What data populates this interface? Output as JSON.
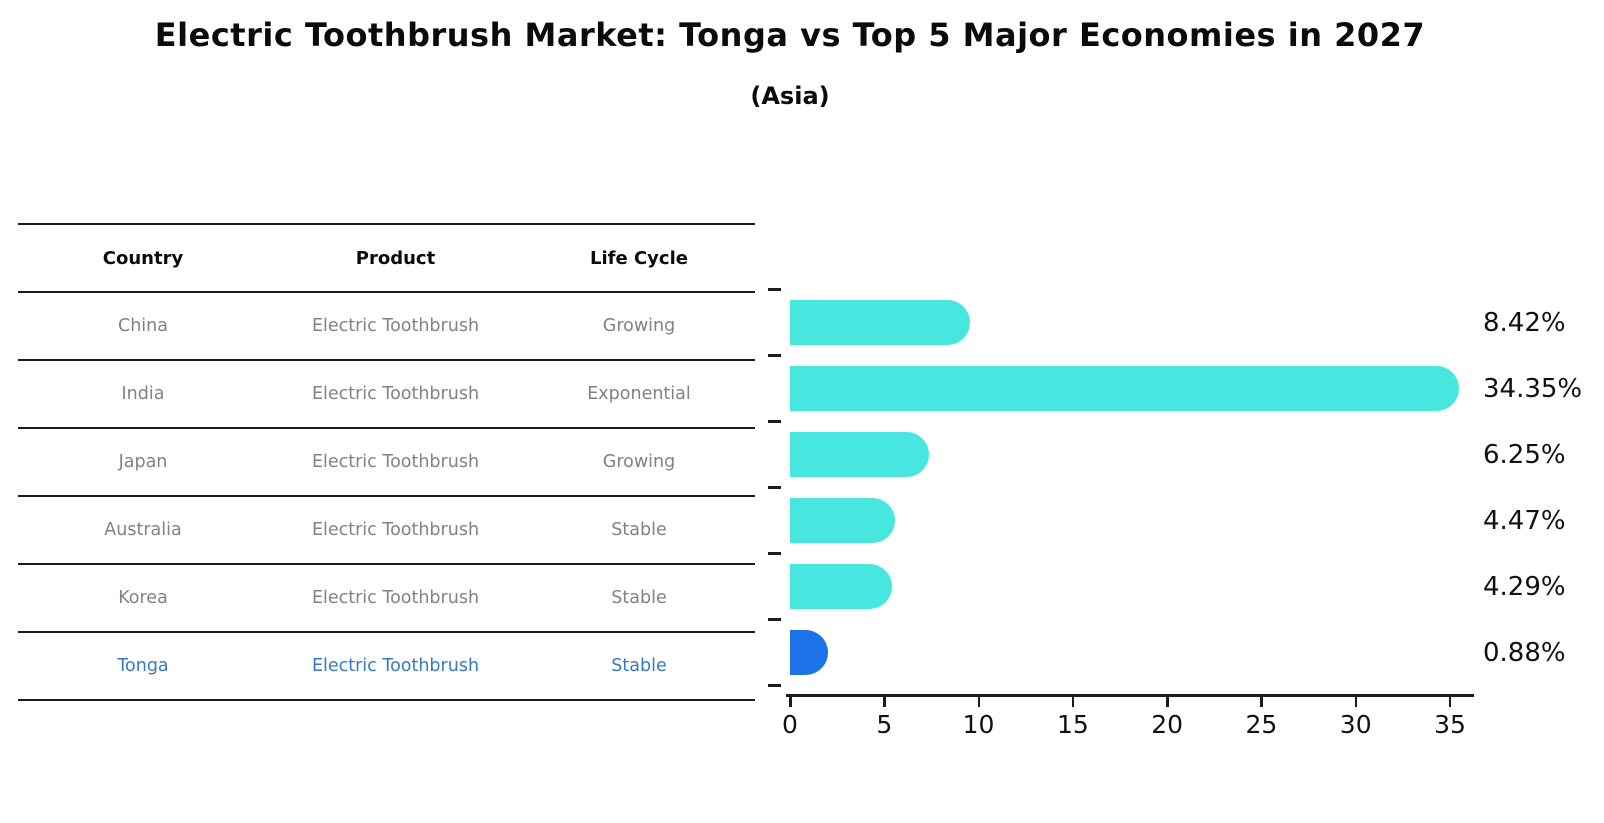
{
  "header": {
    "title": "Electric Toothbrush Market: Tonga vs Top 5 Major Economies in 2027",
    "subtitle": "(Asia)"
  },
  "table": {
    "columns": [
      "Country",
      "Product",
      "Life Cycle"
    ],
    "rows": [
      {
        "country": "China",
        "product": "Electric Toothbrush",
        "life_cycle": "Growing",
        "highlight": false
      },
      {
        "country": "India",
        "product": "Electric Toothbrush",
        "life_cycle": "Exponential",
        "highlight": false
      },
      {
        "country": "Japan",
        "product": "Electric Toothbrush",
        "life_cycle": "Growing",
        "highlight": false
      },
      {
        "country": "Australia",
        "product": "Electric Toothbrush",
        "life_cycle": "Stable",
        "highlight": false
      },
      {
        "country": "Korea",
        "product": "Electric Toothbrush",
        "life_cycle": "Stable",
        "highlight": false
      },
      {
        "country": "Tonga",
        "product": "Electric Toothbrush",
        "life_cycle": "Stable",
        "highlight": true
      }
    ]
  },
  "chart_data": {
    "type": "bar",
    "orientation": "horizontal",
    "title": "Electric Toothbrush Market: Tonga vs Top 5 Major Economies in 2027",
    "subtitle": "(Asia)",
    "categories": [
      "China",
      "India",
      "Japan",
      "Australia",
      "Korea",
      "Tonga"
    ],
    "values": [
      8.42,
      34.35,
      6.25,
      4.47,
      4.29,
      0.88
    ],
    "value_labels": [
      "8.42%",
      "34.35%",
      "6.25%",
      "4.47%",
      "4.29%",
      "0.88%"
    ],
    "xlabel": "",
    "ylabel": "",
    "xlim": [
      0,
      35.5
    ],
    "xticks": [
      0,
      5,
      10,
      15,
      20,
      25,
      30,
      35
    ],
    "grid": false,
    "legend": null,
    "bar_color": "#47E7DF",
    "highlight_color": "#1D72E8",
    "highlight_index": 5,
    "text_color": "#111111",
    "row_text_color": "#828282",
    "highlight_text_color": "#3579C4"
  }
}
